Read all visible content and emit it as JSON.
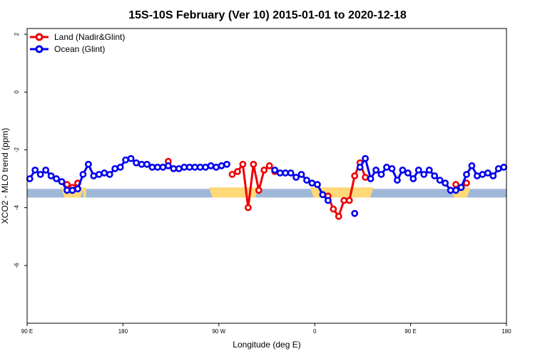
{
  "chart_data": {
    "type": "line",
    "title": "15S-10S February (Ver 10)   2015-01-01 to 2020-12-18",
    "xlabel": "Longitude (deg E)",
    "ylabel": "XCO2 - MLO trend (ppm)",
    "xlim": [
      90,
      540
    ],
    "ylim": [
      -8.0,
      2.2
    ],
    "x_ticks": [
      {
        "value": 90,
        "label": "90 E"
      },
      {
        "value": 180,
        "label": "180"
      },
      {
        "value": 270,
        "label": "90 W"
      },
      {
        "value": 360,
        "label": "0"
      },
      {
        "value": 450,
        "label": "90 E"
      },
      {
        "value": 540,
        "label": "180"
      }
    ],
    "y_ticks": [
      {
        "value": 2,
        "label": "2"
      },
      {
        "value": 0,
        "label": "0"
      },
      {
        "value": -2,
        "label": "-2"
      },
      {
        "value": -4,
        "label": "-4"
      },
      {
        "value": -6,
        "label": "-6"
      }
    ],
    "grid": false,
    "legend": {
      "position": "top-left"
    },
    "series": [
      {
        "name": "Land (Nadir&Glint)",
        "color": "#ee0000",
        "segments": [
          [
            [
              127.5,
              -3.2
            ],
            [
              132.5,
              -3.3
            ],
            [
              137.5,
              -3.15
            ]
          ],
          [
            [
              222.5,
              -2.4
            ]
          ],
          [
            [
              282.5,
              -2.85
            ],
            [
              287.5,
              -2.75
            ],
            [
              292.5,
              -2.5
            ],
            [
              297.5,
              -4.0
            ],
            [
              302.5,
              -2.5
            ],
            [
              307.5,
              -3.4
            ],
            [
              312.5,
              -2.7
            ],
            [
              317.5,
              -2.55
            ],
            [
              322.5,
              -2.75
            ]
          ],
          [
            [
              372.5,
              -3.6
            ],
            [
              377.5,
              -4.05
            ],
            [
              382.5,
              -4.3
            ],
            [
              387.5,
              -3.75
            ],
            [
              392.5,
              -3.75
            ],
            [
              397.5,
              -2.9
            ],
            [
              402.5,
              -2.45
            ],
            [
              407.5,
              -2.95
            ]
          ],
          [
            [
              492.5,
              -3.2
            ],
            [
              497.5,
              -3.3
            ],
            [
              502.5,
              -3.15
            ]
          ]
        ]
      },
      {
        "name": "Ocean (Glint)",
        "color": "#0000ee",
        "segments": [
          [
            [
              92.5,
              -3.0
            ],
            [
              97.5,
              -2.7
            ],
            [
              102.5,
              -2.85
            ],
            [
              107.5,
              -2.7
            ],
            [
              112.5,
              -2.9
            ],
            [
              117.5,
              -3.0
            ],
            [
              122.5,
              -3.1
            ],
            [
              127.5,
              -3.4
            ],
            [
              132.5,
              -3.4
            ],
            [
              137.5,
              -3.35
            ],
            [
              142.5,
              -2.85
            ],
            [
              147.5,
              -2.5
            ],
            [
              152.5,
              -2.9
            ],
            [
              157.5,
              -2.85
            ],
            [
              162.5,
              -2.8
            ],
            [
              167.5,
              -2.85
            ],
            [
              172.5,
              -2.65
            ],
            [
              177.5,
              -2.6
            ],
            [
              182.5,
              -2.35
            ],
            [
              187.5,
              -2.3
            ],
            [
              192.5,
              -2.45
            ],
            [
              197.5,
              -2.5
            ],
            [
              202.5,
              -2.5
            ],
            [
              207.5,
              -2.6
            ],
            [
              212.5,
              -2.6
            ],
            [
              217.5,
              -2.6
            ],
            [
              222.5,
              -2.55
            ],
            [
              227.5,
              -2.65
            ],
            [
              232.5,
              -2.65
            ],
            [
              237.5,
              -2.6
            ],
            [
              242.5,
              -2.6
            ],
            [
              247.5,
              -2.6
            ],
            [
              252.5,
              -2.6
            ],
            [
              257.5,
              -2.6
            ],
            [
              262.5,
              -2.55
            ],
            [
              267.5,
              -2.6
            ],
            [
              272.5,
              -2.55
            ],
            [
              277.5,
              -2.5
            ]
          ],
          [
            [
              322.5,
              -2.7
            ],
            [
              327.5,
              -2.8
            ],
            [
              332.5,
              -2.8
            ],
            [
              337.5,
              -2.8
            ],
            [
              342.5,
              -2.95
            ],
            [
              347.5,
              -2.85
            ],
            [
              352.5,
              -3.05
            ],
            [
              357.5,
              -3.15
            ],
            [
              362.5,
              -3.2
            ],
            [
              367.5,
              -3.55
            ],
            [
              372.5,
              -3.75
            ]
          ],
          [
            [
              397.5,
              -4.2
            ]
          ],
          [
            [
              402.5,
              -2.6
            ],
            [
              407.5,
              -2.3
            ],
            [
              412.5,
              -3.0
            ],
            [
              417.5,
              -2.7
            ],
            [
              422.5,
              -2.85
            ],
            [
              427.5,
              -2.6
            ],
            [
              432.5,
              -2.65
            ],
            [
              437.5,
              -3.05
            ],
            [
              442.5,
              -2.7
            ],
            [
              447.5,
              -2.8
            ],
            [
              452.5,
              -3.0
            ],
            [
              457.5,
              -2.7
            ],
            [
              462.5,
              -2.85
            ],
            [
              467.5,
              -2.7
            ],
            [
              472.5,
              -2.9
            ],
            [
              477.5,
              -3.05
            ],
            [
              482.5,
              -3.15
            ],
            [
              487.5,
              -3.4
            ],
            [
              492.5,
              -3.4
            ],
            [
              497.5,
              -3.3
            ],
            [
              502.5,
              -2.85
            ],
            [
              507.5,
              -2.55
            ],
            [
              512.5,
              -2.9
            ],
            [
              517.5,
              -2.85
            ],
            [
              522.5,
              -2.8
            ],
            [
              527.5,
              -2.9
            ],
            [
              532.5,
              -2.65
            ],
            [
              537.5,
              -2.6
            ]
          ]
        ]
      }
    ],
    "land_ocean_band": {
      "y_range": [
        -3.65,
        -3.35
      ],
      "ocean_color": "#a0b8d8",
      "land_color": "#ffd878",
      "land_spans": [
        [
          125,
          140
        ],
        [
          143,
          145
        ],
        [
          264,
          304
        ],
        [
          359,
          412
        ],
        [
          491,
          503
        ]
      ]
    }
  }
}
